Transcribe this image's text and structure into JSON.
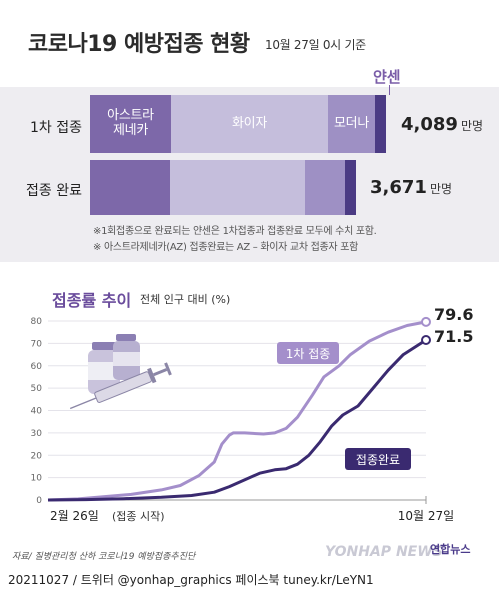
{
  "header": {
    "title": "코로나19 예방접종 현황",
    "subtitle": "10월 27일 0시 기준"
  },
  "bars": {
    "janssen_label": "얀센",
    "rows": [
      {
        "label": "1차 접종",
        "total": "4,089",
        "unit": "만명",
        "segments": [
          {
            "name": "아스트라\n제네카",
            "value": 1125,
            "color": "#7d68a9"
          },
          {
            "name": "화이자",
            "value": 2164,
            "color": "#c5bedc"
          },
          {
            "name": "모더나",
            "value": 650,
            "color": "#9e90c4"
          },
          {
            "name": "",
            "value": 150,
            "color": "#4b3b84"
          }
        ]
      },
      {
        "label": "접종 완료",
        "total": "3,671",
        "unit": "만명",
        "segments": [
          {
            "name": "",
            "value": 1100,
            "color": "#7d68a9"
          },
          {
            "name": "",
            "value": 1870,
            "color": "#c5bedc"
          },
          {
            "name": "",
            "value": 551,
            "color": "#9e90c4"
          },
          {
            "name": "",
            "value": 150,
            "color": "#4b3b84"
          }
        ]
      }
    ],
    "notes": [
      "※1회접종으로 완료되는 얀센은 1차접종과 접종완료 모두에 수치 포함.",
      "※ 아스트라제네카(AZ) 접종완료는 AZ – 화이자 교차 접종자 포함"
    ]
  },
  "trend": {
    "title": "접종률 추이",
    "subtitle": "전체 인구 대비 (%)"
  },
  "chart_data": {
    "type": "line",
    "title": "접종률 추이",
    "ylabel": "전체 인구 대비 (%)",
    "ylim": [
      0,
      80
    ],
    "yticks": [
      0,
      10,
      20,
      30,
      40,
      50,
      60,
      70,
      80
    ],
    "x_start_label": "2월 26일",
    "x_start_note": "(접종 시작)",
    "x_end_label": "10월 27일",
    "series": [
      {
        "name": "1차 접종",
        "color": "#a48fcb",
        "end_label": "79.6",
        "points": [
          [
            0,
            0
          ],
          [
            0.08,
            0.5
          ],
          [
            0.15,
            1.5
          ],
          [
            0.22,
            2.5
          ],
          [
            0.3,
            4.5
          ],
          [
            0.35,
            6.5
          ],
          [
            0.4,
            11
          ],
          [
            0.44,
            17
          ],
          [
            0.46,
            25
          ],
          [
            0.48,
            29
          ],
          [
            0.49,
            30
          ],
          [
            0.52,
            30
          ],
          [
            0.57,
            29.5
          ],
          [
            0.6,
            30
          ],
          [
            0.63,
            32
          ],
          [
            0.66,
            37
          ],
          [
            0.7,
            47
          ],
          [
            0.73,
            55
          ],
          [
            0.77,
            60
          ],
          [
            0.8,
            65
          ],
          [
            0.85,
            71
          ],
          [
            0.9,
            75
          ],
          [
            0.95,
            78
          ],
          [
            1,
            79.6
          ]
        ]
      },
      {
        "name": "접종완료",
        "color": "#3a2a70",
        "end_label": "71.5",
        "points": [
          [
            0,
            0
          ],
          [
            0.1,
            0.2
          ],
          [
            0.2,
            0.6
          ],
          [
            0.3,
            1.2
          ],
          [
            0.38,
            2
          ],
          [
            0.44,
            3.5
          ],
          [
            0.48,
            6
          ],
          [
            0.52,
            9
          ],
          [
            0.56,
            12
          ],
          [
            0.6,
            13.5
          ],
          [
            0.63,
            14
          ],
          [
            0.66,
            16
          ],
          [
            0.69,
            20
          ],
          [
            0.72,
            26
          ],
          [
            0.75,
            33
          ],
          [
            0.78,
            38
          ],
          [
            0.82,
            42
          ],
          [
            0.86,
            50
          ],
          [
            0.9,
            58
          ],
          [
            0.94,
            65
          ],
          [
            1,
            71.5
          ]
        ]
      }
    ]
  },
  "footer": {
    "source": "자료/ 질병관리청 산하 코로나19 예방접종추진단",
    "credit": "20211027 / 트위터 @yonhap_graphics 페이스북 tuney.kr/LeYN1",
    "watermark": "YONHAP NEWS",
    "logo": "연합뉴스"
  }
}
